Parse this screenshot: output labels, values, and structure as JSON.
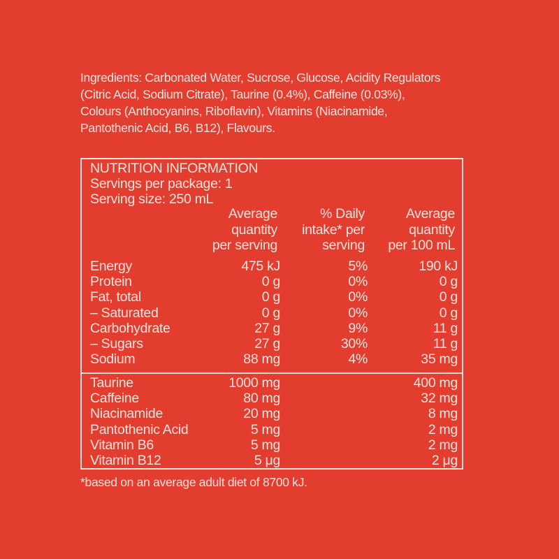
{
  "ingredients": "Ingredients: Carbonated Water, Sucrose, Glucose, Acidity Regulators (Citric Acid, Sodium Citrate), Taurine (0.4%), Caffeine (0.03%), Colours (Anthocyanins, Riboflavin), Vitamins (Niacinamide, Pantothenic Acid, B6, B12), Flavours.",
  "nutrition": {
    "title": "NUTRITION INFORMATION",
    "servings_per_package": "Servings per package: 1",
    "serving_size": "Serving size: 250 mL",
    "headers": [
      "Average\nquantity\nper serving",
      "% Daily\nintake* per\nserving",
      "Average\nquantity\nper 100 mL"
    ],
    "rows": [
      {
        "name": "Energy",
        "per_serving": "475 kJ",
        "daily": "5%",
        "per_100": "190 kJ"
      },
      {
        "name": "Protein",
        "per_serving": "0 g",
        "daily": "0%",
        "per_100": "0 g"
      },
      {
        "name": "Fat, total",
        "per_serving": "0 g",
        "daily": "0%",
        "per_100": "0 g"
      },
      {
        "name": "– Saturated",
        "per_serving": "0 g",
        "daily": "0%",
        "per_100": "0 g"
      },
      {
        "name": "Carbohydrate",
        "per_serving": "27 g",
        "daily": "9%",
        "per_100": "11 g"
      },
      {
        "name": "– Sugars",
        "per_serving": "27 g",
        "daily": "30%",
        "per_100": "11 g"
      },
      {
        "name": "Sodium",
        "per_serving": "88 mg",
        "daily": "4%",
        "per_100": "35 mg"
      }
    ],
    "extra_rows": [
      {
        "name": "Taurine",
        "per_serving": "1000 mg",
        "per_100": "400 mg"
      },
      {
        "name": "Caffeine",
        "per_serving": "80 mg",
        "per_100": "32 mg"
      },
      {
        "name": "Niacinamide",
        "per_serving": "20 mg",
        "per_100": "8 mg"
      },
      {
        "name": "Pantothenic Acid",
        "per_serving": "5 mg",
        "per_100": "2 mg"
      },
      {
        "name": "Vitamin B6",
        "per_serving": "5 mg",
        "per_100": "2 mg"
      },
      {
        "name": "Vitamin B12",
        "per_serving": "5 μg",
        "per_100": "2 μg"
      }
    ]
  },
  "footnote": "*based on an average adult diet of 8700 kJ.",
  "colors": {
    "background": "#e33d30",
    "text": "#fbe3dc"
  }
}
